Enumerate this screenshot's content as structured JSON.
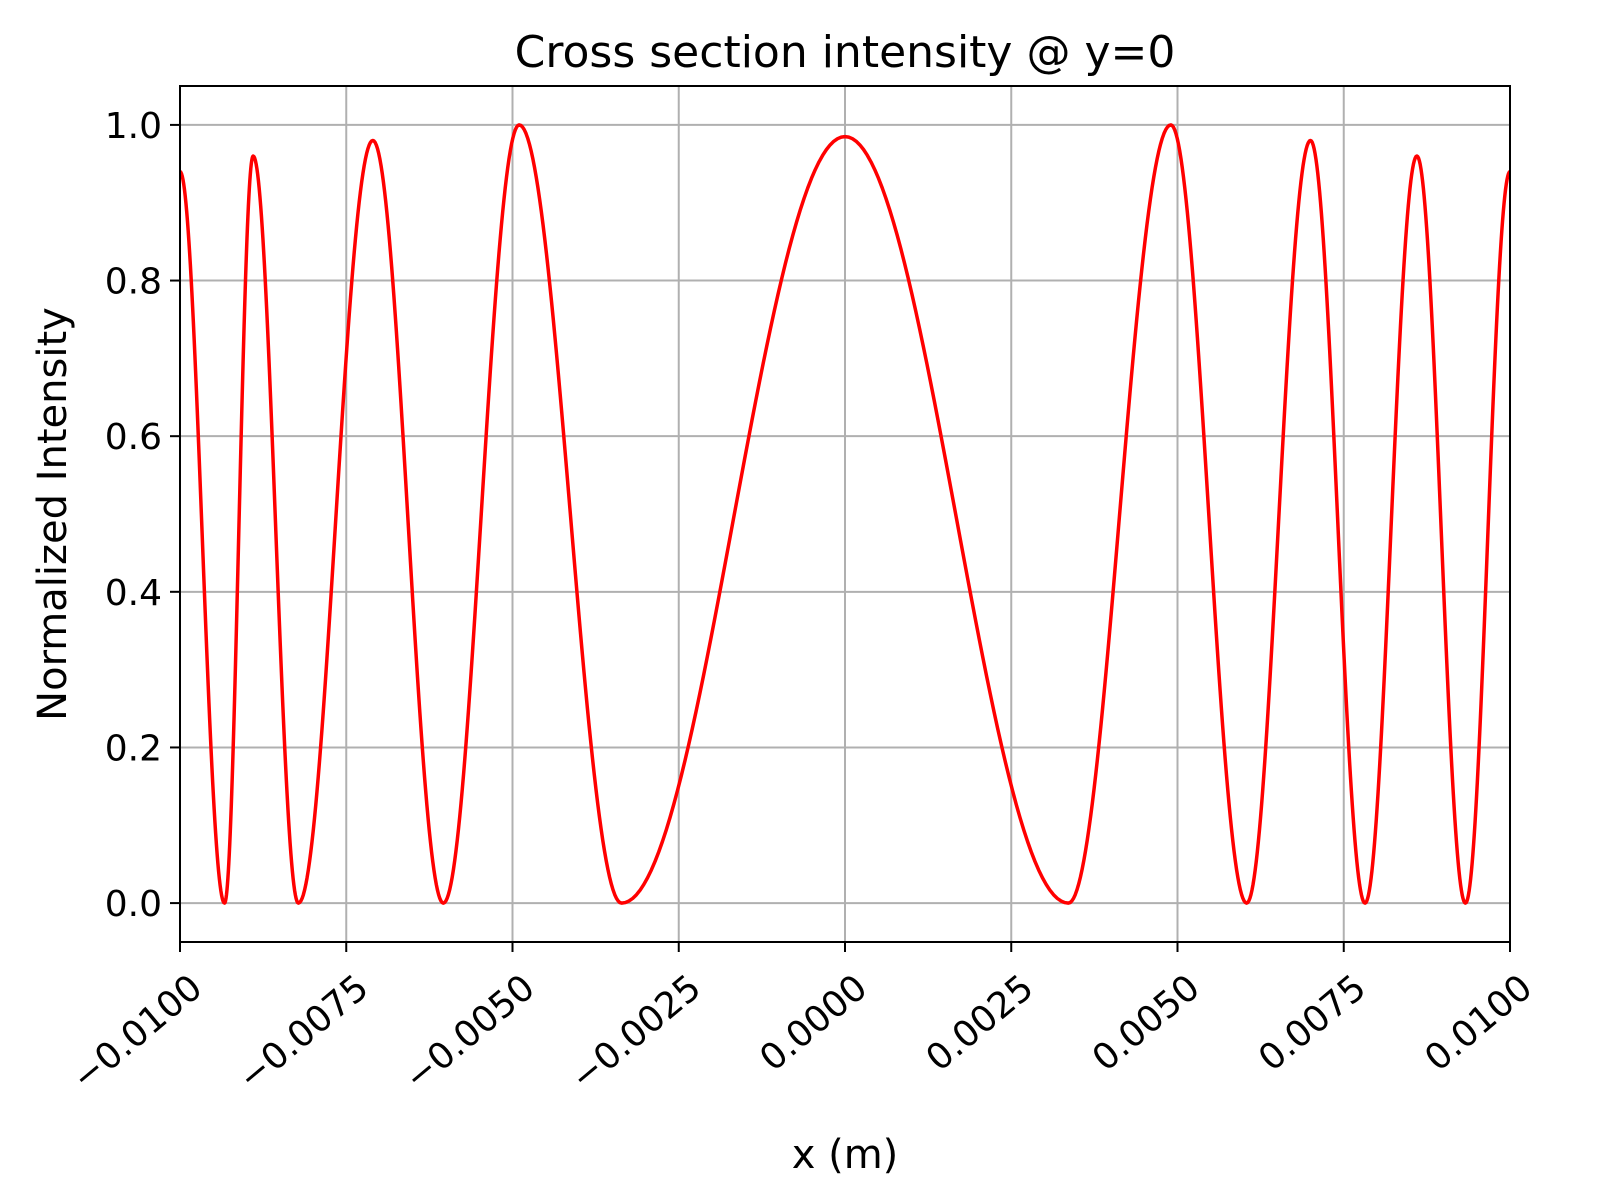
{
  "chart_data": {
    "type": "line",
    "title": "Cross section intensity @ y=0",
    "xlabel": "x (m)",
    "ylabel": "Normalized Intensity",
    "xlim": [
      -0.01,
      0.01
    ],
    "ylim": [
      -0.05,
      1.05
    ],
    "grid": true,
    "x_ticks": [
      {
        "value": -0.01,
        "label": "−0.0100"
      },
      {
        "value": -0.0075,
        "label": "−0.0075"
      },
      {
        "value": -0.005,
        "label": "−0.0050"
      },
      {
        "value": -0.0025,
        "label": "−0.0025"
      },
      {
        "value": 0.0,
        "label": "0.0000"
      },
      {
        "value": 0.0025,
        "label": "0.0025"
      },
      {
        "value": 0.005,
        "label": "0.0050"
      },
      {
        "value": 0.0075,
        "label": "0.0075"
      },
      {
        "value": 0.01,
        "label": "0.0100"
      }
    ],
    "y_ticks": [
      {
        "value": 0.0,
        "label": "0.0"
      },
      {
        "value": 0.2,
        "label": "0.2"
      },
      {
        "value": 0.4,
        "label": "0.4"
      },
      {
        "value": 0.6,
        "label": "0.6"
      },
      {
        "value": 0.8,
        "label": "0.8"
      },
      {
        "value": 1.0,
        "label": "1.0"
      }
    ],
    "series": [
      {
        "color": "#ff0000",
        "points": [
          [
            -0.01,
            0.94
          ],
          [
            -0.00933,
            0.0
          ],
          [
            -0.0089,
            0.96
          ],
          [
            -0.00822,
            0.0
          ],
          [
            -0.0071,
            0.98
          ],
          [
            -0.00604,
            0.0
          ],
          [
            -0.0049,
            1.0
          ],
          [
            -0.00336,
            0.0
          ],
          [
            0.0,
            0.985
          ],
          [
            0.00336,
            0.0
          ],
          [
            0.0049,
            1.0
          ],
          [
            0.00604,
            0.0
          ],
          [
            0.007,
            0.98
          ],
          [
            0.00782,
            0.0
          ],
          [
            0.0086,
            0.96
          ],
          [
            0.00933,
            0.0
          ],
          [
            0.01,
            0.94
          ]
        ]
      }
    ]
  }
}
